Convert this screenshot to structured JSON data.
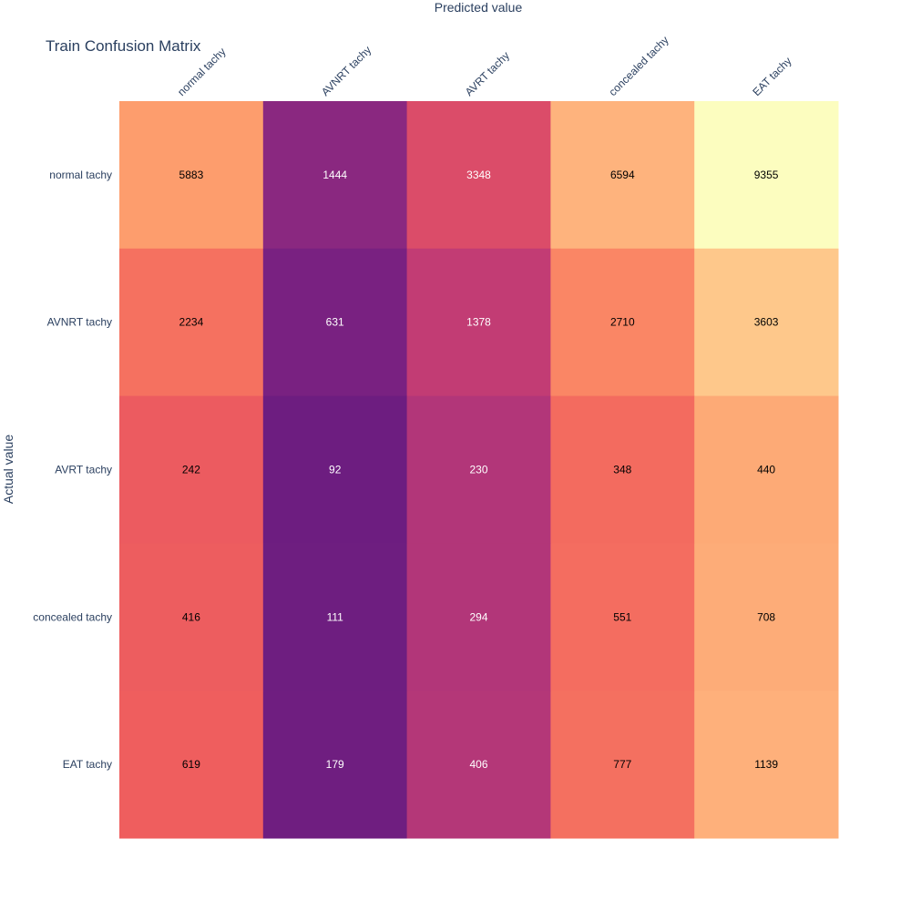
{
  "chart_data": {
    "type": "heatmap",
    "title": "Train Confusion Matrix",
    "xlabel": "Predicted value",
    "ylabel": "Actual value",
    "x_categories": [
      "normal tachy",
      "AVNRT tachy",
      "AVRT tachy",
      "concealed tachy",
      "EAT tachy"
    ],
    "y_categories": [
      "normal tachy",
      "AVNRT tachy",
      "AVRT tachy",
      "concealed tachy",
      "EAT tachy"
    ],
    "values": [
      [
        5883,
        1444,
        3348,
        6594,
        9355
      ],
      [
        2234,
        631,
        1378,
        2710,
        3603
      ],
      [
        242,
        92,
        230,
        348,
        440
      ],
      [
        416,
        111,
        294,
        551,
        708
      ],
      [
        619,
        179,
        406,
        777,
        1139
      ]
    ],
    "colorscale": "magma",
    "colorscale_colors": [
      "#000004",
      "#180f3d",
      "#440f76",
      "#721f81",
      "#9e2f7f",
      "#cd4071",
      "#f1605d",
      "#fd9668",
      "#feca8d",
      "#fcfdbf"
    ],
    "x_axis_side": "top",
    "grid": false,
    "legend": "none"
  }
}
